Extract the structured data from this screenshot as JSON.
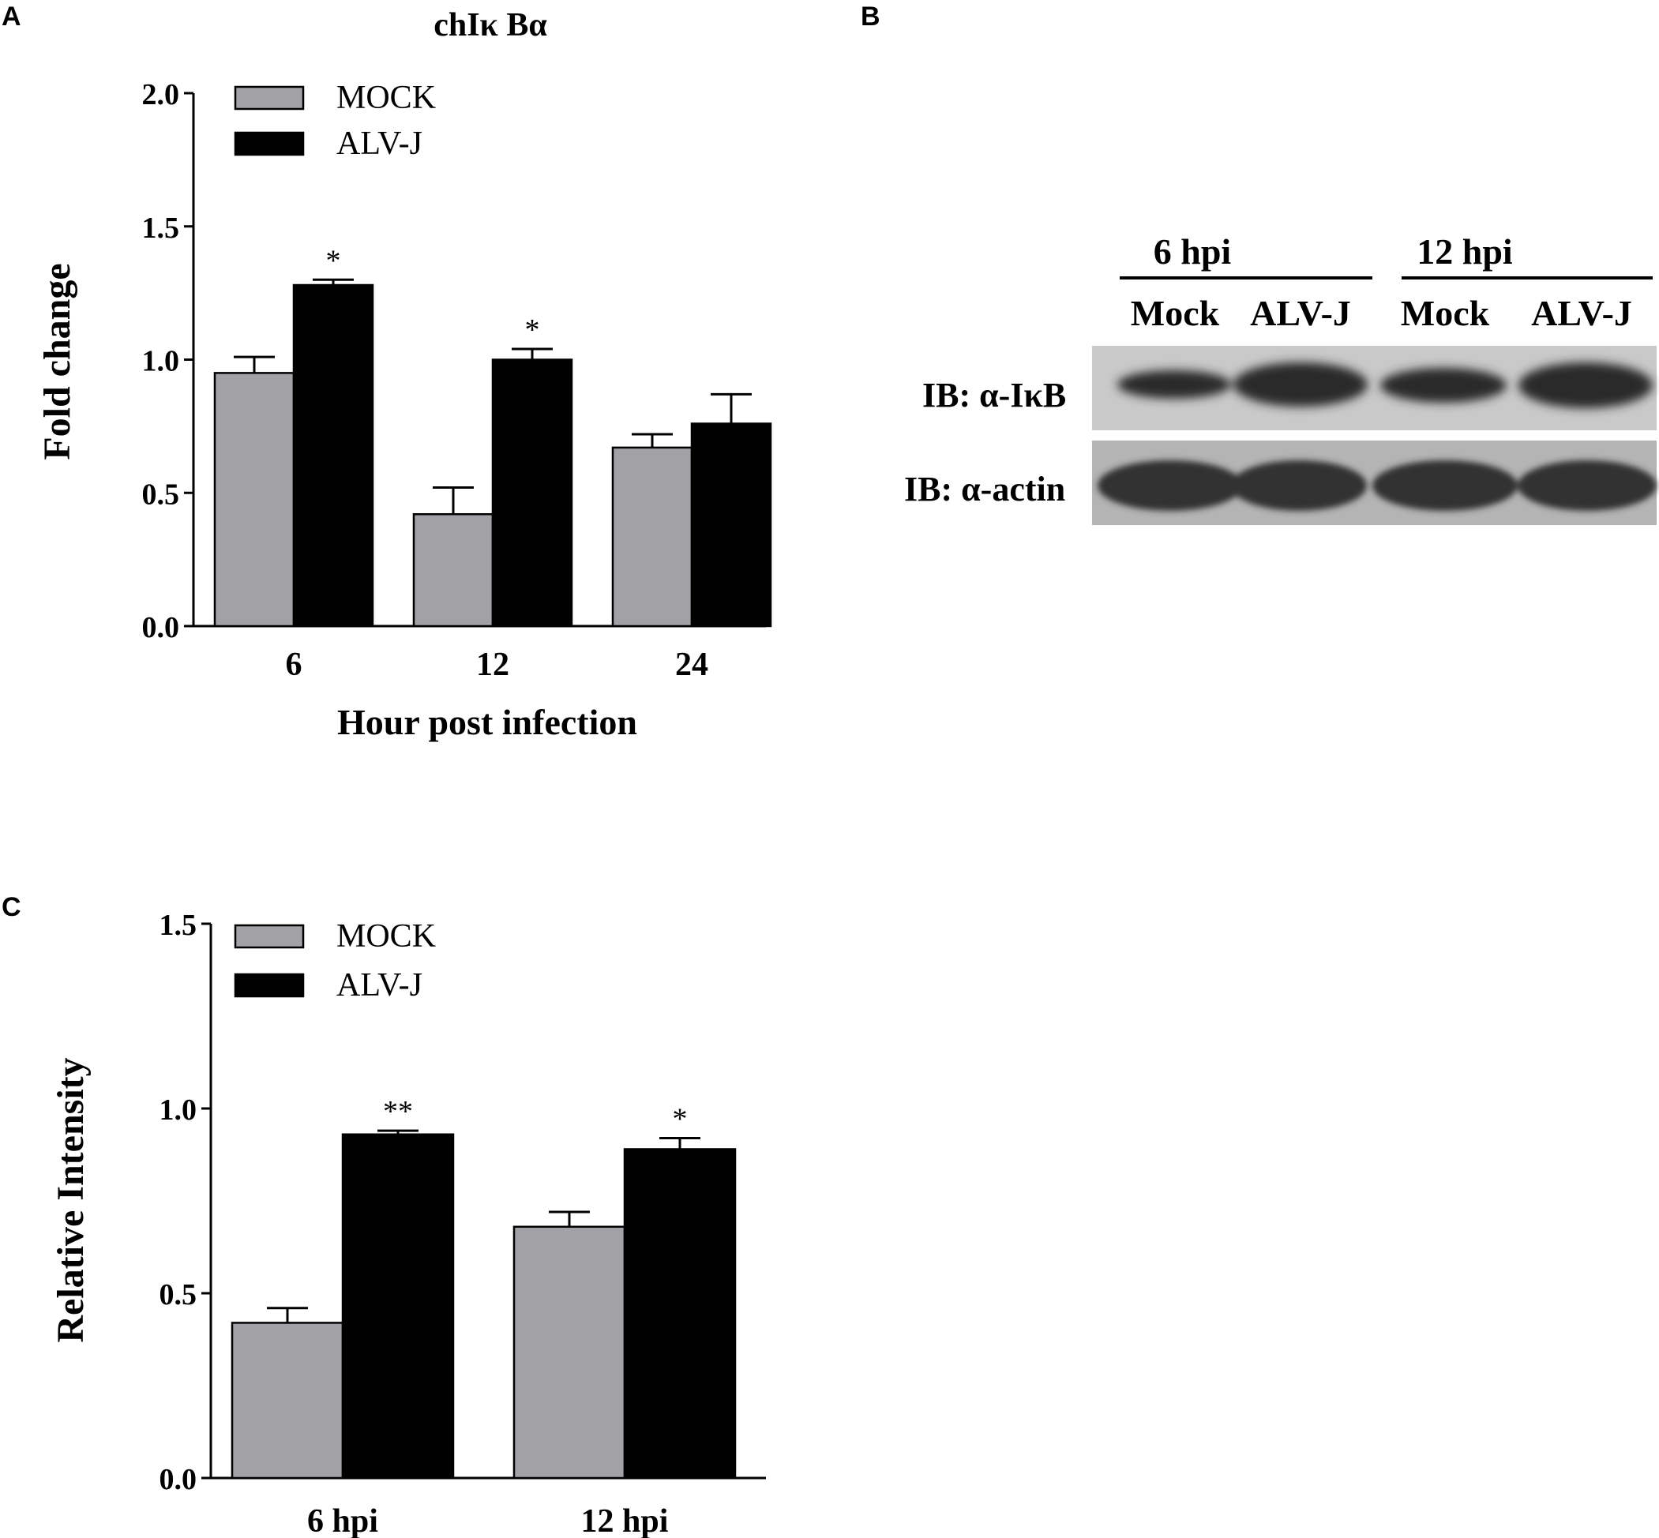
{
  "panels": {
    "a": "A",
    "b": "B",
    "c": "C"
  },
  "chart_data": [
    {
      "id": "A",
      "type": "bar",
      "title": "chIκ Bα",
      "xlabel": "Hour post infection",
      "ylabel": "Fold change",
      "categories": [
        "6",
        "12",
        "24"
      ],
      "ylim": [
        0,
        2.0
      ],
      "yticks": [
        0.0,
        0.5,
        1.0,
        1.5,
        2.0
      ],
      "ytick_labels": [
        "0.0",
        "0.5",
        "1.0",
        "1.5",
        "2.0"
      ],
      "legend_position": "top-left",
      "series": [
        {
          "name": "MOCK",
          "color": "#a2a1a6",
          "values": [
            0.95,
            0.42,
            0.67
          ],
          "errors": [
            0.06,
            0.1,
            0.05
          ],
          "annotations": [
            "",
            "",
            ""
          ]
        },
        {
          "name": "ALV-J",
          "color": "#000000",
          "values": [
            1.28,
            1.0,
            0.76
          ],
          "errors": [
            0.02,
            0.04,
            0.11
          ],
          "annotations": [
            "*",
            "*",
            ""
          ]
        }
      ]
    },
    {
      "id": "C",
      "type": "bar",
      "title": "",
      "xlabel": "",
      "ylabel": "Relative Intensity",
      "categories": [
        "6 hpi",
        "12 hpi"
      ],
      "ylim": [
        0,
        1.5
      ],
      "yticks": [
        0.0,
        0.5,
        1.0,
        1.5
      ],
      "ytick_labels": [
        "0.0",
        "0.5",
        "1.0",
        "1.5"
      ],
      "legend_position": "top-left",
      "series": [
        {
          "name": "MOCK",
          "color": "#a2a1a6",
          "values": [
            0.42,
            0.68
          ],
          "errors": [
            0.04,
            0.04
          ],
          "annotations": [
            "",
            ""
          ]
        },
        {
          "name": "ALV-J",
          "color": "#000000",
          "values": [
            0.93,
            0.89
          ],
          "errors": [
            0.01,
            0.03
          ],
          "annotations": [
            "**",
            "*"
          ]
        }
      ]
    }
  ],
  "blot": {
    "groups": [
      "6 hpi",
      "12 hpi"
    ],
    "lanes": [
      "Mock",
      "ALV-J",
      "Mock",
      "ALV-J"
    ],
    "rows": [
      "IB: α-IκB",
      "IB: α-actin"
    ]
  }
}
